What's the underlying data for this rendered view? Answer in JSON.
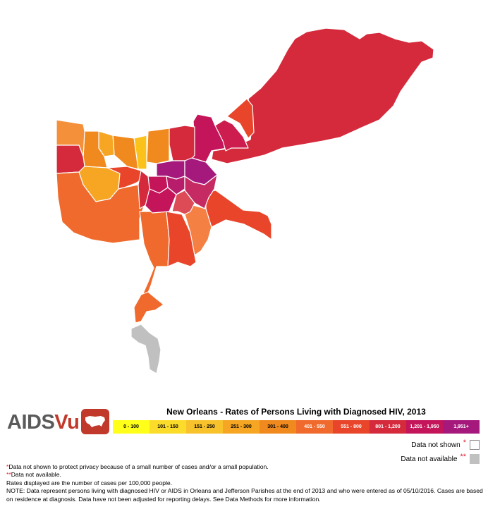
{
  "legend": {
    "title": "New Orleans - Rates of Persons Living with Diagnosed HIV, 2013",
    "bins": [
      {
        "label": "0 - 100",
        "color": "#ffff1a"
      },
      {
        "label": "101 - 150",
        "color": "#fcdc2a"
      },
      {
        "label": "151 - 250",
        "color": "#f8c22c"
      },
      {
        "label": "251 - 300",
        "color": "#f6a623"
      },
      {
        "label": "301 - 400",
        "color": "#f08a1e"
      },
      {
        "label": "401 - 550",
        "color": "#ef6a2c"
      },
      {
        "label": "551 - 800",
        "color": "#e8452a"
      },
      {
        "label": "801 - 1,200",
        "color": "#d42a3c"
      },
      {
        "label": "1,201 - 1,950",
        "color": "#c4155a"
      },
      {
        "label": "1,951+",
        "color": "#a5197d"
      }
    ],
    "not_shown": {
      "label": "Data not shown",
      "marker": "*"
    },
    "not_available": {
      "label": "Data not available",
      "marker": "**",
      "color": "#c0c0c0"
    }
  },
  "logo": {
    "part1": "AIDS",
    "part2": "Vu"
  },
  "notes": {
    "n1_marker": "*",
    "n1": "Data not shown to protect privacy because of a small number of cases and/or a small population.",
    "n2_marker": "**",
    "n2": "Data not available.",
    "n3": "Rates displayed are the number of cases per 100,000 people.",
    "n4": "NOTE: Data represent persons living with diagnosed HIV or AIDS in Orleans and Jefferson Parishes at the end of 2013 and who were entered as of 05/10/2016. Cases are based on residence at diagnosis. Data have not been adjusted for reporting delays. See Data Methods for more information."
  },
  "map": {
    "regions": [
      {
        "name": "new-orleans-east",
        "bin": "801 - 1,200",
        "color": "#d42a3c"
      },
      {
        "name": "east-north-small",
        "bin": "551 - 800",
        "color": "#e8452a"
      },
      {
        "name": "gentilly-north",
        "bin": "1,201 - 1,950",
        "color": "#c4155a"
      },
      {
        "name": "gentilly-east",
        "bin": "1,201 - 1,950",
        "color": "#cc1d4e"
      },
      {
        "name": "lakeview",
        "bin": "801 - 1,200",
        "color": "#d42a3c"
      },
      {
        "name": "lakefront-mid",
        "bin": "301 - 400",
        "color": "#f08a1e"
      },
      {
        "name": "lakefront-yellow",
        "bin": "101 - 150",
        "color": "#fcc21c"
      },
      {
        "name": "metairie-east",
        "bin": "301 - 400",
        "color": "#f08a1e"
      },
      {
        "name": "metairie-north-light",
        "bin": "251 - 300",
        "color": "#f6a623"
      },
      {
        "name": "metairie-north",
        "bin": "301 - 400",
        "color": "#f08a1e"
      },
      {
        "name": "metairie-northwest",
        "bin": "301 - 400",
        "color": "#f5903a"
      },
      {
        "name": "kenner-west",
        "bin": "801 - 1,200",
        "color": "#d42a3c"
      },
      {
        "name": "west-metairie",
        "bin": "251 - 300",
        "color": "#f6a623"
      },
      {
        "name": "jefferson-central",
        "bin": "551 - 800",
        "color": "#e8452a"
      },
      {
        "name": "harahan-south",
        "bin": "401 - 550",
        "color": "#ef6a2c"
      },
      {
        "name": "west-bank-south",
        "bin": "401 - 550",
        "color": "#ef6a2c"
      },
      {
        "name": "west-bank-central",
        "bin": "551 - 800",
        "color": "#e8452a"
      },
      {
        "name": "west-bank-east",
        "bin": "401 - 550",
        "color": "#f48043"
      },
      {
        "name": "algiers",
        "bin": "551 - 800",
        "color": "#e8452a"
      },
      {
        "name": "mid-city",
        "bin": "1,951+",
        "color": "#a5197d"
      },
      {
        "name": "st-roch",
        "bin": "1,951+",
        "color": "#a5197d"
      },
      {
        "name": "central-city",
        "bin": "1,201 - 1,950",
        "color": "#c4155a"
      },
      {
        "name": "uptown-west",
        "bin": "801 - 1,200",
        "color": "#d42a3c"
      },
      {
        "name": "central-small",
        "bin": "1,201 - 1,950",
        "color": "#b81d6b"
      },
      {
        "name": "garden-district",
        "bin": "1,201 - 1,950",
        "color": "#c4155a"
      },
      {
        "name": "marigny-bywater",
        "bin": "1,201 - 1,950",
        "color": "#c62a62"
      },
      {
        "name": "west-bank-center-light",
        "bin": "801 - 1,200",
        "color": "#dc4b56"
      },
      {
        "name": "lower-plaquemines",
        "bin": "401 - 550",
        "color": "#ef6a2c"
      },
      {
        "name": "grand-isle",
        "bin": "no data",
        "color": "#c0c0c0"
      }
    ]
  }
}
